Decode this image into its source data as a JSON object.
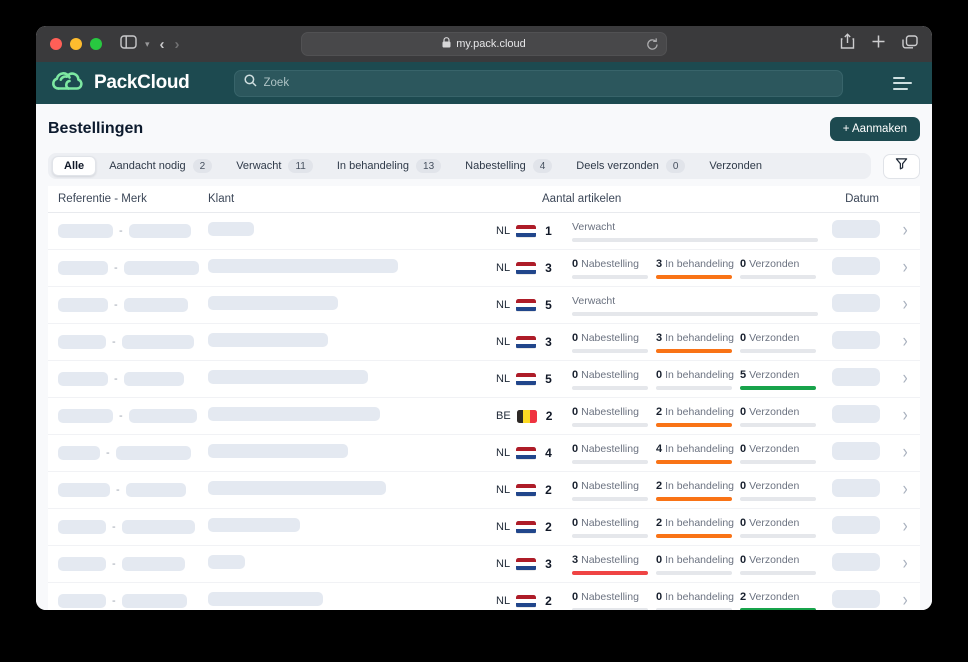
{
  "browser": {
    "url": "my.pack.cloud",
    "icons": [
      "sidebar-icon",
      "chevron-down-icon",
      "back-icon",
      "forward-icon",
      "lock-icon",
      "reload-icon",
      "share-icon",
      "new-tab-icon",
      "tabs-overview-icon"
    ]
  },
  "app_header": {
    "brand": "PackCloud",
    "search_placeholder": "Zoek",
    "icons": [
      "cloud-logo-icon",
      "search-icon",
      "menu-icon"
    ]
  },
  "page": {
    "title": "Bestellingen",
    "create_button": "+ Aanmaken"
  },
  "tabs": [
    {
      "label": "Alle",
      "count": null,
      "active": true
    },
    {
      "label": "Aandacht nodig",
      "count": "2",
      "active": false
    },
    {
      "label": "Verwacht",
      "count": "11",
      "active": false
    },
    {
      "label": "In behandeling",
      "count": "13",
      "active": false
    },
    {
      "label": "Nabestelling",
      "count": "4",
      "active": false
    },
    {
      "label": "Deels verzonden",
      "count": "0",
      "active": false
    },
    {
      "label": "Verzonden",
      "count": null,
      "active": false
    }
  ],
  "filter_icon": "funnel-icon",
  "table": {
    "columns": {
      "ref": "Referentie - Merk",
      "klant": "Klant",
      "aantal": "Aantal artikelen",
      "datum": "Datum"
    },
    "rows": [
      {
        "country": "NL",
        "flag": "nl",
        "count": "1",
        "status": "verwacht",
        "label": "Verwacht",
        "skeleton": {
          "ref": 55,
          "merk": 62,
          "klant": 46
        }
      },
      {
        "country": "NL",
        "flag": "nl",
        "count": "3",
        "status": "segments",
        "segments": [
          {
            "value": "0",
            "label": "Nabestelling",
            "bar": "gray"
          },
          {
            "value": "3",
            "label": "In behandeling",
            "bar": "orange"
          },
          {
            "value": "0",
            "label": "Verzonden",
            "bar": "gray"
          }
        ],
        "skeleton": {
          "ref": 50,
          "merk": 75,
          "klant": 190
        }
      },
      {
        "country": "NL",
        "flag": "nl",
        "count": "5",
        "status": "verwacht",
        "label": "Verwacht",
        "skeleton": {
          "ref": 50,
          "merk": 64,
          "klant": 130
        }
      },
      {
        "country": "NL",
        "flag": "nl",
        "count": "3",
        "status": "segments",
        "segments": [
          {
            "value": "0",
            "label": "Nabestelling",
            "bar": "gray"
          },
          {
            "value": "3",
            "label": "In behandeling",
            "bar": "orange"
          },
          {
            "value": "0",
            "label": "Verzonden",
            "bar": "gray"
          }
        ],
        "skeleton": {
          "ref": 48,
          "merk": 72,
          "klant": 120
        }
      },
      {
        "country": "NL",
        "flag": "nl",
        "count": "5",
        "status": "segments",
        "segments": [
          {
            "value": "0",
            "label": "Nabestelling",
            "bar": "gray"
          },
          {
            "value": "0",
            "label": "In behandeling",
            "bar": "gray"
          },
          {
            "value": "5",
            "label": "Verzonden",
            "bar": "green"
          }
        ],
        "skeleton": {
          "ref": 50,
          "merk": 60,
          "klant": 160
        }
      },
      {
        "country": "BE",
        "flag": "be",
        "count": "2",
        "status": "segments",
        "segments": [
          {
            "value": "0",
            "label": "Nabestelling",
            "bar": "gray"
          },
          {
            "value": "2",
            "label": "In behandeling",
            "bar": "orange"
          },
          {
            "value": "0",
            "label": "Verzonden",
            "bar": "gray"
          }
        ],
        "skeleton": {
          "ref": 55,
          "merk": 68,
          "klant": 172
        }
      },
      {
        "country": "NL",
        "flag": "nl",
        "count": "4",
        "status": "segments",
        "segments": [
          {
            "value": "0",
            "label": "Nabestelling",
            "bar": "gray"
          },
          {
            "value": "4",
            "label": "In behandeling",
            "bar": "orange"
          },
          {
            "value": "0",
            "label": "Verzonden",
            "bar": "gray"
          }
        ],
        "skeleton": {
          "ref": 42,
          "merk": 75,
          "klant": 140
        }
      },
      {
        "country": "NL",
        "flag": "nl",
        "count": "2",
        "status": "segments",
        "segments": [
          {
            "value": "0",
            "label": "Nabestelling",
            "bar": "gray"
          },
          {
            "value": "2",
            "label": "In behandeling",
            "bar": "orange"
          },
          {
            "value": "0",
            "label": "Verzonden",
            "bar": "gray"
          }
        ],
        "skeleton": {
          "ref": 52,
          "merk": 60,
          "klant": 178
        }
      },
      {
        "country": "NL",
        "flag": "nl",
        "count": "2",
        "status": "segments",
        "segments": [
          {
            "value": "0",
            "label": "Nabestelling",
            "bar": "gray"
          },
          {
            "value": "2",
            "label": "In behandeling",
            "bar": "orange"
          },
          {
            "value": "0",
            "label": "Verzonden",
            "bar": "gray"
          }
        ],
        "skeleton": {
          "ref": 48,
          "merk": 73,
          "klant": 92
        }
      },
      {
        "country": "NL",
        "flag": "nl",
        "count": "3",
        "status": "segments",
        "segments": [
          {
            "value": "3",
            "label": "Nabestelling",
            "bar": "red"
          },
          {
            "value": "0",
            "label": "In behandeling",
            "bar": "gray"
          },
          {
            "value": "0",
            "label": "Verzonden",
            "bar": "gray"
          }
        ],
        "skeleton": {
          "ref": 48,
          "merk": 63,
          "klant": 37
        }
      },
      {
        "country": "NL",
        "flag": "nl",
        "count": "2",
        "status": "segments",
        "segments": [
          {
            "value": "0",
            "label": "Nabestelling",
            "bar": "gray"
          },
          {
            "value": "0",
            "label": "In behandeling",
            "bar": "gray"
          },
          {
            "value": "2",
            "label": "Verzonden",
            "bar": "green"
          }
        ],
        "skeleton": {
          "ref": 48,
          "merk": 65,
          "klant": 115
        }
      }
    ]
  },
  "colors": {
    "teal": "#1d4a50",
    "bars": {
      "gray": "#e5e7eb",
      "orange": "#f97316",
      "green": "#18a34b",
      "red": "#ef4444"
    },
    "skeleton": "#e4e9f1",
    "flags": {
      "nl": {
        "dir": "column",
        "stripes": [
          "#AE1C28",
          "#FFFFFF",
          "#21468B"
        ]
      },
      "be": {
        "dir": "row",
        "stripes": [
          "#2D2926",
          "#FDDA24",
          "#EF3340"
        ]
      }
    }
  }
}
